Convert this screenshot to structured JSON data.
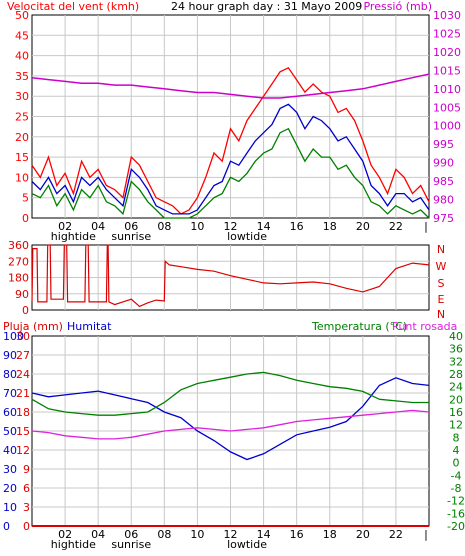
{
  "header": {
    "left_title": "Velocitat del vent (kmh)",
    "center_title": "24 hour graph day : 31 Mayo 2009",
    "right_title": "Pressió (mb)"
  },
  "time_axis": {
    "hour_labels": [
      "02",
      "04",
      "06",
      "08",
      "10",
      "12",
      "14",
      "16",
      "18",
      "20",
      "22",
      "|"
    ],
    "under_labels": [
      "hightide",
      "sunrise",
      "lowtide"
    ]
  },
  "colors": {
    "wind_avg": "#008000",
    "wind_gust": "#ff0000",
    "wind_mid": "#0000cc",
    "pressure": "#cc00cc",
    "direction": "#dd0000",
    "humidity": "#0000cc",
    "temperature": "#008000",
    "dewpoint": "#dd22dd",
    "rain": "#dd0000",
    "grid": "#c8c8c8",
    "axis": "#000000"
  },
  "chart_data": [
    {
      "type": "line",
      "name": "wind-pressure",
      "title": "24 hour graph day : 31 Mayo 2009",
      "ylabel_left": "Velocitat del vent (kmh)",
      "ylabel_right": "Pressió (mb)",
      "x_range_hours": [
        0,
        24
      ],
      "ylim_left": [
        0,
        50
      ],
      "ylim_right": [
        975,
        1030
      ],
      "left_ticks": [
        0,
        5,
        10,
        15,
        20,
        25,
        30,
        35,
        40,
        45,
        50
      ],
      "right_ticks": [
        975,
        980,
        985,
        990,
        995,
        1000,
        1005,
        1010,
        1015,
        1020,
        1025,
        1030
      ],
      "series": [
        {
          "key": "gust",
          "axis": "left",
          "hours": [
            0,
            0.5,
            1,
            1.5,
            2,
            2.5,
            3,
            3.5,
            4,
            4.5,
            5,
            5.5,
            6,
            6.5,
            7,
            7.5,
            8,
            8.5,
            9,
            9.5,
            10,
            10.5,
            11,
            11.5,
            12,
            12.5,
            13,
            13.5,
            14,
            14.5,
            15,
            15.5,
            16,
            16.5,
            17,
            17.5,
            18,
            18.5,
            19,
            19.5,
            20,
            20.5,
            21,
            21.5,
            22,
            22.5,
            23,
            23.5,
            24
          ],
          "values": [
            13,
            10,
            15,
            8,
            11,
            6,
            14,
            10,
            12,
            8,
            7,
            5,
            15,
            13,
            9,
            5,
            4,
            3,
            1,
            2,
            5,
            10,
            16,
            14,
            22,
            19,
            24,
            27,
            30,
            33,
            36,
            37,
            34,
            31,
            33,
            31,
            30,
            26,
            27,
            24,
            19,
            13,
            10,
            6,
            12,
            10,
            6,
            8,
            4
          ]
        },
        {
          "key": "mid",
          "axis": "left",
          "hours": [
            0,
            0.5,
            1,
            1.5,
            2,
            2.5,
            3,
            3.5,
            4,
            4.5,
            5,
            5.5,
            6,
            6.5,
            7,
            7.5,
            8,
            8.5,
            9,
            9.5,
            10,
            10.5,
            11,
            11.5,
            12,
            12.5,
            13,
            13.5,
            14,
            14.5,
            15,
            15.5,
            16,
            16.5,
            17,
            17.5,
            18,
            18.5,
            19,
            19.5,
            20,
            20.5,
            21,
            21.5,
            22,
            22.5,
            23,
            23.5,
            24
          ],
          "values": [
            9,
            7,
            10,
            6,
            8,
            4,
            10,
            8,
            10,
            7,
            5,
            3,
            12,
            10,
            7,
            3,
            2,
            1,
            1,
            1,
            2,
            5,
            8,
            9,
            14,
            13,
            16,
            19,
            21,
            23,
            27,
            28,
            26,
            22,
            25,
            24,
            22,
            19,
            20,
            17,
            14,
            8,
            6,
            3,
            6,
            6,
            4,
            5,
            2
          ]
        },
        {
          "key": "avg",
          "axis": "left",
          "hours": [
            0,
            0.5,
            1,
            1.5,
            2,
            2.5,
            3,
            3.5,
            4,
            4.5,
            5,
            5.5,
            6,
            6.5,
            7,
            7.5,
            8,
            8.5,
            9,
            9.5,
            10,
            10.5,
            11,
            11.5,
            12,
            12.5,
            13,
            13.5,
            14,
            14.5,
            15,
            15.5,
            16,
            16.5,
            17,
            17.5,
            18,
            18.5,
            19,
            19.5,
            20,
            20.5,
            21,
            21.5,
            22,
            22.5,
            23,
            23.5,
            24
          ],
          "values": [
            6,
            5,
            8,
            3,
            6,
            2,
            7,
            5,
            8,
            4,
            3,
            1,
            9,
            7,
            4,
            2,
            0,
            0,
            0,
            0,
            1,
            3,
            5,
            6,
            10,
            9,
            11,
            14,
            16,
            17,
            21,
            22,
            18,
            14,
            17,
            15,
            15,
            12,
            13,
            10,
            8,
            4,
            3,
            1,
            3,
            2,
            1,
            2,
            0
          ]
        },
        {
          "key": "pressure",
          "axis": "right",
          "hours": [
            0,
            1,
            2,
            3,
            4,
            5,
            6,
            7,
            8,
            9,
            10,
            11,
            12,
            13,
            14,
            15,
            16,
            17,
            18,
            19,
            20,
            21,
            22,
            23,
            24
          ],
          "values": [
            1013,
            1012.5,
            1012,
            1011.5,
            1011.5,
            1011,
            1011,
            1010.5,
            1010,
            1009.5,
            1009,
            1009,
            1008.5,
            1008,
            1007.5,
            1007.5,
            1008,
            1008.5,
            1009,
            1009.5,
            1010,
            1011,
            1012,
            1013,
            1014
          ]
        }
      ]
    },
    {
      "type": "line",
      "name": "wind-direction",
      "x_range_hours": [
        0,
        24
      ],
      "ylim": [
        0,
        360
      ],
      "left_ticks": [
        0,
        90,
        180,
        270,
        360
      ],
      "right_letters": [
        "N",
        "W",
        "S",
        "E",
        "N"
      ],
      "series": [
        {
          "key": "direction",
          "hours": [
            0,
            0.05,
            0.3,
            0.35,
            0.9,
            0.95,
            1.1,
            1.15,
            1.9,
            1.95,
            2.1,
            2.15,
            3.2,
            3.25,
            3.4,
            3.45,
            4.5,
            4.55,
            4.6,
            4.65,
            5,
            6,
            6.5,
            7,
            7.5,
            8,
            8.05,
            8.3,
            9,
            10,
            11,
            12,
            13,
            14,
            15,
            16,
            17,
            18,
            19,
            20,
            21,
            22,
            23,
            24
          ],
          "values": [
            45,
            340,
            340,
            45,
            45,
            360,
            360,
            60,
            60,
            360,
            360,
            45,
            45,
            360,
            360,
            45,
            45,
            360,
            360,
            45,
            30,
            60,
            20,
            40,
            55,
            50,
            270,
            250,
            240,
            225,
            215,
            190,
            170,
            150,
            145,
            150,
            155,
            145,
            120,
            100,
            130,
            230,
            260,
            250
          ]
        }
      ]
    },
    {
      "type": "line",
      "name": "rain-humidity-temperature",
      "title_left": "Pluja (mm)",
      "title_humidity": "Humitat",
      "title_temp": "Temperatura (°C)",
      "title_dew": "Punt rosada",
      "x_range_hours": [
        0,
        24
      ],
      "ylim_rain": [
        0,
        30
      ],
      "ylim_humidity": [
        0,
        100
      ],
      "ylim_temp": [
        -20,
        40
      ],
      "rain_ticks": [
        0,
        3,
        6,
        9,
        12,
        15,
        18,
        21,
        24,
        27,
        30
      ],
      "humidity_ticks": [
        0,
        10,
        20,
        30,
        40,
        50,
        60,
        70,
        80,
        90,
        100
      ],
      "temp_ticks": [
        -20,
        -16,
        -12,
        -8,
        -4,
        0,
        4,
        8,
        12,
        16,
        20,
        24,
        28,
        32,
        36,
        40
      ],
      "series": [
        {
          "key": "humidity",
          "axis": "humidity",
          "hours": [
            0,
            1,
            2,
            3,
            4,
            5,
            6,
            7,
            8,
            9,
            10,
            11,
            12,
            13,
            14,
            15,
            16,
            17,
            18,
            19,
            20,
            21,
            22,
            23,
            24
          ],
          "values": [
            70,
            68,
            69,
            70,
            71,
            69,
            67,
            65,
            60,
            57,
            50,
            45,
            39,
            35,
            38,
            43,
            48,
            50,
            52,
            55,
            63,
            74,
            78,
            75,
            74
          ]
        },
        {
          "key": "temperature",
          "axis": "temp",
          "hours": [
            0,
            1,
            2,
            3,
            4,
            5,
            6,
            7,
            8,
            9,
            10,
            11,
            12,
            13,
            14,
            15,
            16,
            17,
            18,
            19,
            20,
            21,
            22,
            23,
            24
          ],
          "values": [
            20,
            17,
            16,
            15.5,
            15,
            15,
            15.5,
            16,
            19,
            23,
            25,
            26,
            27,
            28,
            28.5,
            27.5,
            26,
            25,
            24,
            23.5,
            22.5,
            20,
            19.5,
            19,
            19
          ]
        },
        {
          "key": "dewpoint",
          "axis": "temp",
          "hours": [
            0,
            1,
            2,
            3,
            4,
            5,
            6,
            7,
            8,
            9,
            10,
            11,
            12,
            13,
            14,
            15,
            16,
            17,
            18,
            19,
            20,
            21,
            22,
            23,
            24
          ],
          "values": [
            10,
            9.5,
            8.5,
            8,
            7.5,
            7.5,
            8,
            9,
            10,
            10.5,
            11,
            10.5,
            10,
            10.5,
            11,
            12,
            13,
            13.5,
            14,
            14.5,
            15,
            15.5,
            16,
            16.5,
            16
          ]
        },
        {
          "key": "rain",
          "axis": "rain",
          "hours": [
            0,
            24
          ],
          "values": [
            0,
            0
          ]
        }
      ]
    }
  ]
}
